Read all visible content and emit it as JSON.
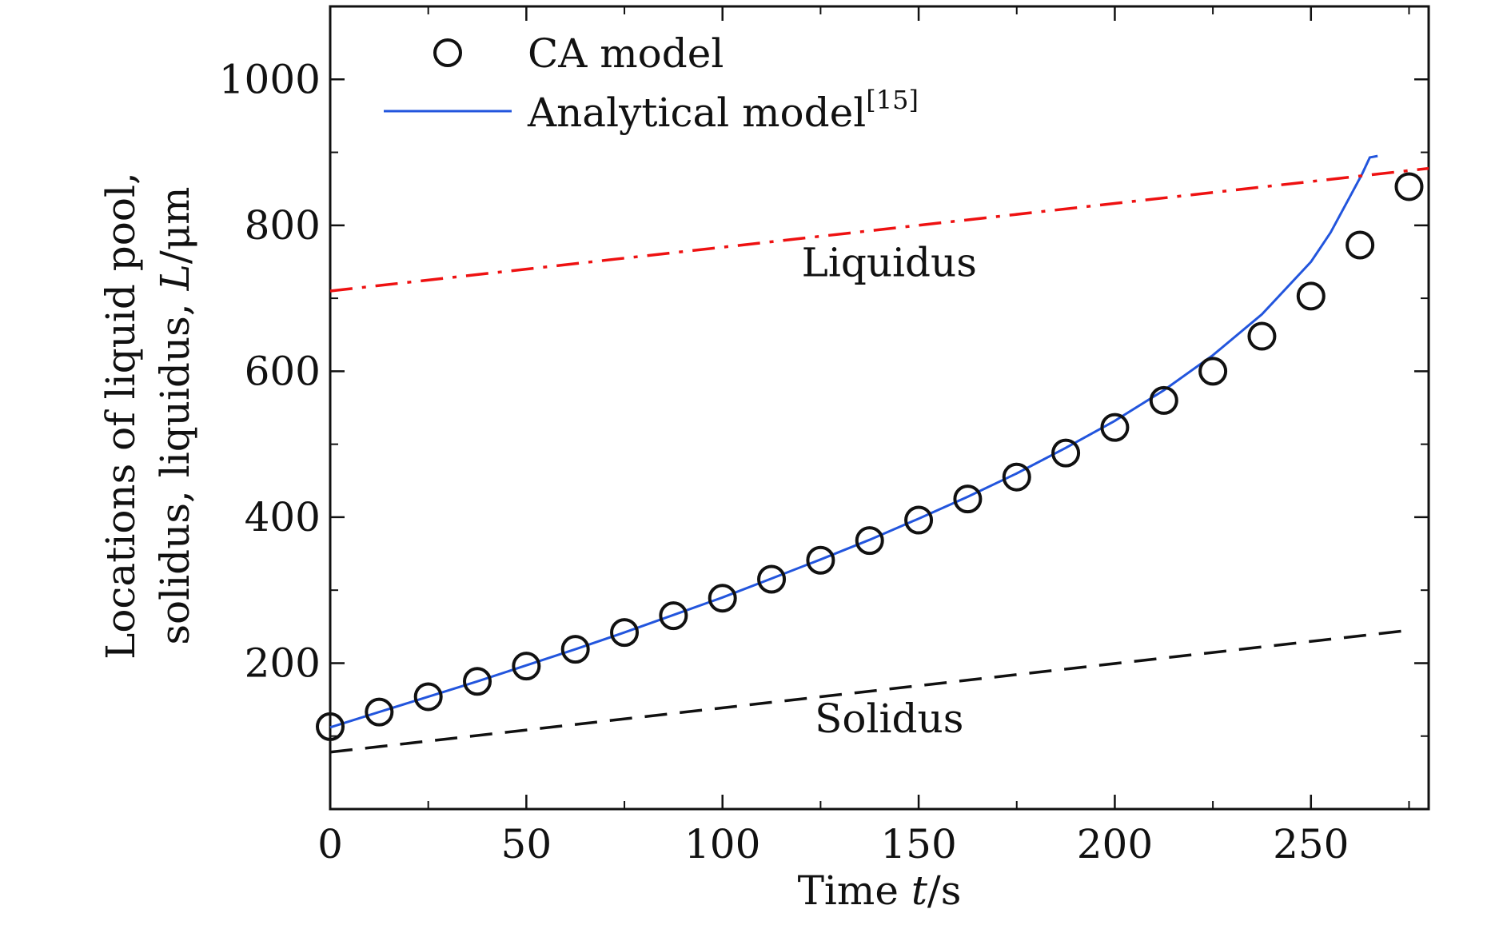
{
  "chart_data": {
    "type": "line",
    "xlabel": {
      "prefix": "Time ",
      "var": "t",
      "suffix": "/s"
    },
    "ylabel": {
      "line1": "Locations of liquid pool,",
      "line2_prefix": "solidus, liquidus, ",
      "line2_var": "L",
      "line2_suffix": "/μm"
    },
    "xlim": [
      0,
      280
    ],
    "ylim": [
      0,
      1100
    ],
    "x_ticks": [
      0,
      50,
      100,
      150,
      200,
      250
    ],
    "y_ticks": [
      200,
      400,
      600,
      800,
      1000
    ],
    "x_minor_step": 25,
    "y_minor_step": 100,
    "grid": false,
    "legend_position": "top-left",
    "series": [
      {
        "name": "CA model",
        "kind": "markers",
        "marker": "open-circle",
        "color": "#111111",
        "x": [
          0,
          12.5,
          25,
          37.5,
          50,
          62.5,
          75,
          87.5,
          100,
          112.5,
          125,
          137.5,
          150,
          162.5,
          175,
          187.5,
          200,
          212.5,
          225,
          237.5,
          250,
          262.5,
          275
        ],
        "y": [
          113,
          133,
          154,
          175,
          196,
          219,
          242,
          265,
          289,
          315,
          341,
          368,
          396,
          425,
          455,
          488,
          523,
          560,
          600,
          648,
          703,
          773,
          853
        ]
      },
      {
        "name": "Analytical model",
        "name_sup": "[15]",
        "kind": "line",
        "style": "solid",
        "color": "#2255dd",
        "x": [
          0,
          12.5,
          25,
          37.5,
          50,
          62.5,
          75,
          87.5,
          100,
          112.5,
          125,
          137.5,
          150,
          162.5,
          175,
          187.5,
          200,
          212.5,
          225,
          237.5,
          250,
          255,
          260,
          263,
          265,
          267
        ],
        "y": [
          112,
          133,
          154,
          175,
          197,
          219,
          242,
          266,
          290,
          316,
          342,
          369,
          398,
          428,
          460,
          495,
          532,
          574,
          622,
          678,
          750,
          790,
          840,
          870,
          893,
          895
        ]
      },
      {
        "kind": "line",
        "style": "dashdot",
        "color": "#ee1111",
        "x": [
          0,
          280
        ],
        "y": [
          710,
          878
        ]
      },
      {
        "kind": "line",
        "style": "dashed",
        "color": "#111111",
        "x": [
          0,
          275
        ],
        "y": [
          78,
          245
        ]
      }
    ],
    "annotations": [
      {
        "text": "Liquidus",
        "x": 142.5,
        "y": 730
      },
      {
        "text": "Solidus",
        "x": 142.5,
        "y": 105
      }
    ]
  }
}
